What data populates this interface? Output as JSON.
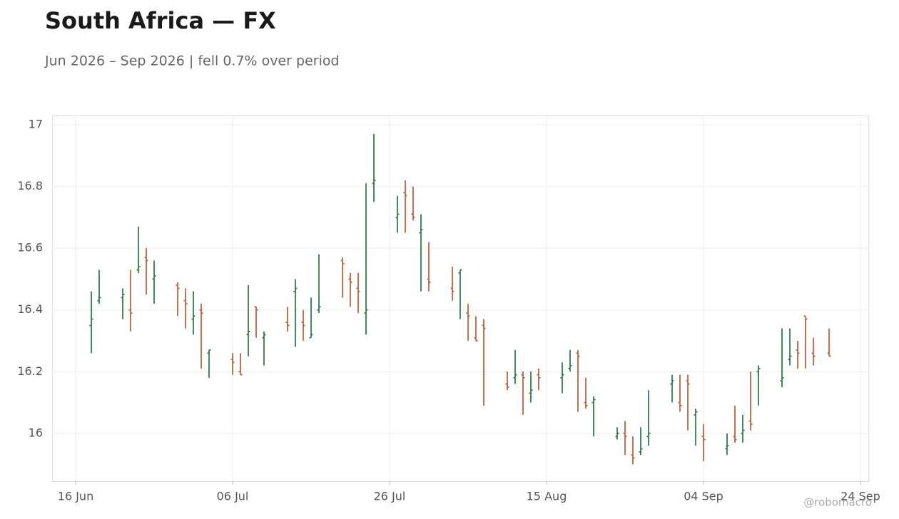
{
  "chart_data": {
    "type": "ohlc",
    "title": "South Africa — FX",
    "subtitle": "Jun 2026 – Sep 2026 | fell 0.7% over period",
    "watermark": "@robomacro",
    "up_color": "#2e7d4f",
    "down_color": "#c0623a",
    "grid": true,
    "xlim": [
      "13 Jun",
      "25 Sep"
    ],
    "xticks": [
      "16 Jun",
      "06 Jul",
      "26 Jul",
      "15 Aug",
      "04 Sep",
      "24 Sep"
    ],
    "ylim": [
      15.845,
      17.03
    ],
    "yticks": [
      16,
      16.2,
      16.4,
      16.6,
      16.8,
      17
    ],
    "x": [
      "18 Jun",
      "19 Jun",
      "22 Jun",
      "23 Jun",
      "24 Jun",
      "25 Jun",
      "26 Jun",
      "29 Jun",
      "30 Jun",
      "01 Jul",
      "02 Jul",
      "03 Jul",
      "06 Jul",
      "07 Jul",
      "08 Jul",
      "09 Jul",
      "10 Jul",
      "13 Jul",
      "14 Jul",
      "15 Jul",
      "16 Jul",
      "17 Jul",
      "20 Jul",
      "21 Jul",
      "22 Jul",
      "23 Jul",
      "24 Jul",
      "27 Jul",
      "28 Jul",
      "29 Jul",
      "30 Jul",
      "31 Jul",
      "03 Aug",
      "04 Aug",
      "05 Aug",
      "06 Aug",
      "07 Aug",
      "10 Aug",
      "11 Aug",
      "12 Aug",
      "13 Aug",
      "14 Aug",
      "17 Aug",
      "18 Aug",
      "19 Aug",
      "20 Aug",
      "21 Aug",
      "24 Aug",
      "25 Aug",
      "26 Aug",
      "27 Aug",
      "28 Aug",
      "31 Aug",
      "01 Sep",
      "02 Sep",
      "03 Sep",
      "04 Sep",
      "07 Sep",
      "08 Sep",
      "09 Sep",
      "10 Sep",
      "11 Sep",
      "14 Sep",
      "15 Sep",
      "16 Sep",
      "17 Sep",
      "18 Sep",
      "20 Sep"
    ],
    "open": [
      16.35,
      16.43,
      16.44,
      16.4,
      16.53,
      16.57,
      16.5,
      16.48,
      16.43,
      16.37,
      16.4,
      16.26,
      16.24,
      16.2,
      16.32,
      16.41,
      16.31,
      16.36,
      16.46,
      16.36,
      16.31,
      16.4,
      16.56,
      16.5,
      16.47,
      16.39,
      16.81,
      16.7,
      16.78,
      16.71,
      16.65,
      16.5,
      16.47,
      16.52,
      16.39,
      16.31,
      16.35,
      16.16,
      16.18,
      16.19,
      16.13,
      16.19,
      16.18,
      16.21,
      16.26,
      16.1,
      16.1,
      15.99,
      16.0,
      15.93,
      15.94,
      15.99,
      16.16,
      16.1,
      16.17,
      16.06,
      15.99,
      15.95,
      15.99,
      16.0,
      16.04,
      16.2,
      16.17,
      16.24,
      16.27,
      16.38,
      16.26,
      16.26
    ],
    "high": [
      16.46,
      16.53,
      16.47,
      16.53,
      16.67,
      16.6,
      16.56,
      16.49,
      16.47,
      16.46,
      16.42,
      16.27,
      16.26,
      16.26,
      16.48,
      16.41,
      16.33,
      16.41,
      16.5,
      16.4,
      16.44,
      16.58,
      16.57,
      16.52,
      16.52,
      16.81,
      16.97,
      16.77,
      16.82,
      16.8,
      16.71,
      16.62,
      16.54,
      16.53,
      16.42,
      16.38,
      16.37,
      16.2,
      16.27,
      16.2,
      16.2,
      16.21,
      16.23,
      16.27,
      16.27,
      16.18,
      16.12,
      16.02,
      16.04,
      15.99,
      16.02,
      16.14,
      16.19,
      16.19,
      16.19,
      16.08,
      16.03,
      16.0,
      16.09,
      16.06,
      16.2,
      16.22,
      16.34,
      16.34,
      16.3,
      16.38,
      16.31,
      16.34
    ],
    "low": [
      16.26,
      16.42,
      16.37,
      16.33,
      16.52,
      16.45,
      16.42,
      16.38,
      16.34,
      16.32,
      16.21,
      16.18,
      16.19,
      16.19,
      16.25,
      16.31,
      16.22,
      16.33,
      16.28,
      16.3,
      16.31,
      16.39,
      16.44,
      16.41,
      16.39,
      16.32,
      16.75,
      16.65,
      16.65,
      16.69,
      16.46,
      16.46,
      16.43,
      16.37,
      16.3,
      16.3,
      16.09,
      16.14,
      16.16,
      16.06,
      16.1,
      16.14,
      16.13,
      16.2,
      16.07,
      16.08,
      15.99,
      15.98,
      15.93,
      15.9,
      15.93,
      15.96,
      16.1,
      16.07,
      16.01,
      15.96,
      15.91,
      15.93,
      15.97,
      15.97,
      16.01,
      16.09,
      16.15,
      16.22,
      16.21,
      16.21,
      16.22,
      16.25
    ],
    "close": [
      16.37,
      16.44,
      16.45,
      16.39,
      16.54,
      16.56,
      16.51,
      16.47,
      16.42,
      16.38,
      16.39,
      16.27,
      16.23,
      16.19,
      16.33,
      16.4,
      16.32,
      16.35,
      16.47,
      16.35,
      16.32,
      16.41,
      16.55,
      16.49,
      16.46,
      16.4,
      16.82,
      16.71,
      16.77,
      16.7,
      16.66,
      16.49,
      16.46,
      16.53,
      16.38,
      16.3,
      16.34,
      16.15,
      16.19,
      16.18,
      16.14,
      16.18,
      16.19,
      16.22,
      16.25,
      16.09,
      16.11,
      16.0,
      15.99,
      15.92,
      15.95,
      16.0,
      16.17,
      16.09,
      16.16,
      16.07,
      15.98,
      15.96,
      15.98,
      16.01,
      16.03,
      16.21,
      16.18,
      16.25,
      16.26,
      16.37,
      16.25,
      16.25
    ]
  }
}
